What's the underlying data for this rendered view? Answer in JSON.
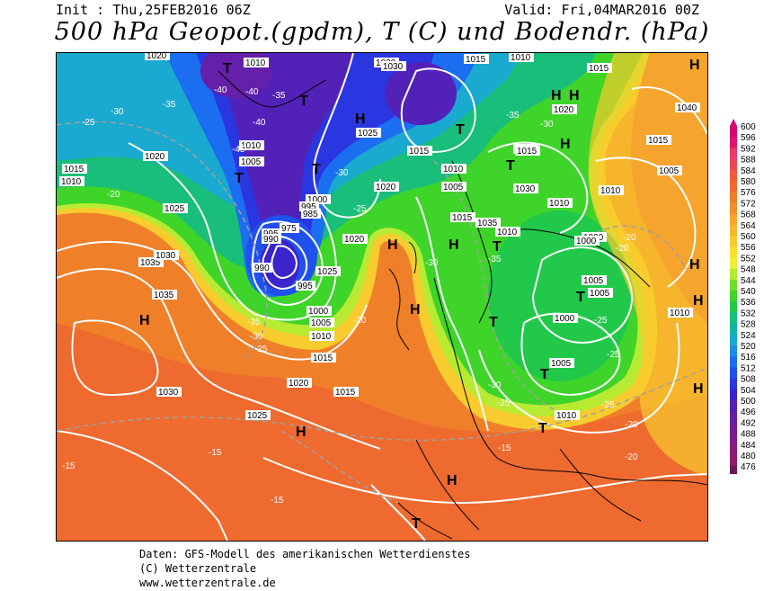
{
  "header": {
    "init": "Init : Thu,25FEB2016 06Z",
    "valid": "Valid: Fri,04MAR2016 00Z",
    "title": "500 hPa Geopot.(gpdm), T (C) und Bodendr. (hPa)"
  },
  "legend": {
    "values": [
      "600",
      "596",
      "592",
      "588",
      "584",
      "580",
      "576",
      "572",
      "568",
      "564",
      "560",
      "556",
      "552",
      "548",
      "544",
      "540",
      "536",
      "532",
      "528",
      "524",
      "520",
      "516",
      "512",
      "508",
      "504",
      "500",
      "496",
      "492",
      "488",
      "484",
      "480",
      "476"
    ],
    "colors": [
      "#d20a6e",
      "#e0156e",
      "#e83a6e",
      "#ea4a55",
      "#ee5a3c",
      "#ef6a2e",
      "#f07f2a",
      "#f2902c",
      "#f5a42e",
      "#f7b82e",
      "#f8cc2e",
      "#f9e030",
      "#eef03a",
      "#b7ea33",
      "#6fde2a",
      "#3ed42a",
      "#22c84a",
      "#18be7a",
      "#12b4a6",
      "#1aa9cf",
      "#1a8ee6",
      "#1c6ef0",
      "#2050ee",
      "#2a36e0",
      "#3a24cc",
      "#5222b8",
      "#6420a8",
      "#721e96",
      "#7e1c86",
      "#881c76",
      "#901a68",
      "#6a1a58"
    ]
  },
  "footer": {
    "line1": "Daten: GFS-Modell des amerikanischen Wetterdienstes",
    "line2": "(C) Wetterzentrale",
    "line3": "www.wetterzentrale.de"
  },
  "map": {
    "pressure_labels": [
      "1020",
      "1010",
      "1030",
      "1015",
      "1010",
      "1015",
      "1020",
      "1025",
      "1015",
      "1010",
      "1005",
      "1010",
      "1015",
      "1020",
      "1005",
      "1010",
      "1000",
      "995",
      "985",
      "975",
      "990",
      "995",
      "1000",
      "1005",
      "1010",
      "1015",
      "1020",
      "1030",
      "1035",
      "1025",
      "1020",
      "1025",
      "1010",
      "1005",
      "1000",
      "1005",
      "1010",
      "1015",
      "1020",
      "1025",
      "1030",
      "1035",
      "1040",
      "1000",
      "1000",
      "1005",
      "1010",
      "1015",
      "1005",
      "1010",
      "1010",
      "1015",
      "1030",
      "1035",
      "1015",
      "1010",
      "995",
      "990",
      "1030"
    ],
    "temp_labels": [
      "-25",
      "-30",
      "-35",
      "-40",
      "-45",
      "-40",
      "-40",
      "-35",
      "-30",
      "-25",
      "-20",
      "-15",
      "-35",
      "-30",
      "-25",
      "-20",
      "-30",
      "-35",
      "-25",
      "-20",
      "-20",
      "-25",
      "-30",
      "-35",
      "-25",
      "-20",
      "-15",
      "-15",
      "-15",
      "-20",
      "-25",
      "-30"
    ],
    "high_labels": [
      "H",
      "H",
      "H",
      "H",
      "H",
      "H",
      "H",
      "H",
      "H",
      "H",
      "H",
      "H",
      "H",
      "H"
    ],
    "low_labels": [
      "T",
      "T",
      "T",
      "T",
      "T",
      "T",
      "T",
      "T",
      "T",
      "T",
      "T",
      "T"
    ]
  }
}
